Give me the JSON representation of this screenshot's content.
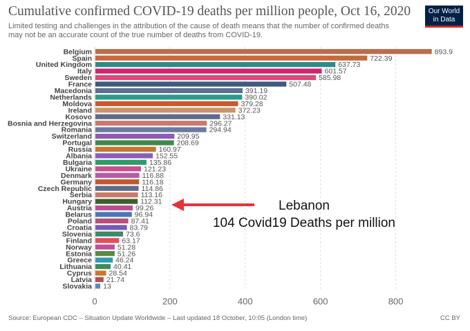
{
  "header": {
    "title": "Cumulative confirmed COVID-19 deaths per million people, Oct 16, 2020",
    "subtitle_line1": "Limited testing and challenges in the attribution of the cause of death means that the number of confirmed deaths",
    "subtitle_line2": "may not be an accurate count of the true number of deaths from COVID-19.",
    "logo_line1": "Our World",
    "logo_line2": "in Data"
  },
  "footer": {
    "source": "Source: European CDC – Situation Update Worldwide – Last updated 18 October, 10:05 (London time)",
    "license": "CC BY"
  },
  "annotation": {
    "line1": "Lebanon",
    "line2": "104 Covid19 Deaths per million",
    "arrow_color": "#e8313c"
  },
  "chart_data": {
    "type": "bar",
    "orientation": "horizontal",
    "title": "Cumulative confirmed COVID-19 deaths per million people, Oct 16, 2020",
    "xlim": [
      0,
      900
    ],
    "x_ticks": [
      0,
      200,
      400,
      600,
      800
    ],
    "grid": "vertical dashed",
    "categories": [
      "Belgium",
      "Spain",
      "United Kingdom",
      "Italy",
      "Sweden",
      "France",
      "Macedonia",
      "Netherlands",
      "Moldova",
      "Ireland",
      "Kosovo",
      "Bosnia and Herzegovina",
      "Romania",
      "Switzerland",
      "Portugal",
      "Russia",
      "Albania",
      "Bulgaria",
      "Ukraine",
      "Denmark",
      "Germany",
      "Czech Republic",
      "Serbia",
      "Hungary",
      "Austria",
      "Belarus",
      "Poland",
      "Croatia",
      "Slovenia",
      "Finland",
      "Norway",
      "Estonia",
      "Greece",
      "Lithuania",
      "Cyprus",
      "Latvia",
      "Slovakia"
    ],
    "values": [
      893.9,
      722.39,
      637.73,
      601.57,
      585.98,
      507.48,
      391.19,
      390.02,
      379.28,
      372.23,
      331.13,
      296.27,
      294.94,
      209.95,
      208.69,
      160.97,
      152.55,
      135.86,
      121.23,
      116.88,
      116.18,
      114.86,
      113.16,
      112.31,
      99.26,
      96.94,
      87.41,
      83.79,
      73.6,
      63.17,
      51.28,
      51.26,
      46.24,
      40.41,
      28.54,
      21.74,
      13
    ],
    "value_labels": [
      "893.9",
      "722.39",
      "637.73",
      "601.57",
      "585.98",
      "507.48",
      "391.19",
      "390.02",
      "379.28",
      "372.23",
      "331.13",
      "296.27",
      "294.94",
      "209.95",
      "208.69",
      "160.97",
      "152.55",
      "135.86",
      "121.23",
      "116.88",
      "116.18",
      "114.86",
      "113.16",
      "112.31",
      "99.26",
      "96.94",
      "87.41",
      "83.79",
      "73.6",
      "63.17",
      "51.28",
      "51.26",
      "46.24",
      "40.41",
      "28.54",
      "21.74",
      "13"
    ],
    "colors": [
      "#b86e4a",
      "#c46a3d",
      "#2e8b8b",
      "#d1236e",
      "#e0457b",
      "#3f5a7a",
      "#5c6f8f",
      "#2c9a8e",
      "#c85a2e",
      "#c9946a",
      "#5d6b8c",
      "#c87b6a",
      "#6a7aa0",
      "#8e5bb5",
      "#3f8a4a",
      "#c8772e",
      "#8e5bb5",
      "#2f9b6a",
      "#c8508f",
      "#b85aa5",
      "#c05a2e",
      "#5d6b8c",
      "#c87b6a",
      "#3d5f2e",
      "#b8508f",
      "#4a78b8",
      "#b8507a",
      "#7a5ab8",
      "#3d8a6a",
      "#e0505a",
      "#c0509a",
      "#5a8a3d",
      "#2e9ab0",
      "#3d8a5a",
      "#c8772e",
      "#b8504a",
      "#5a88c0"
    ]
  }
}
